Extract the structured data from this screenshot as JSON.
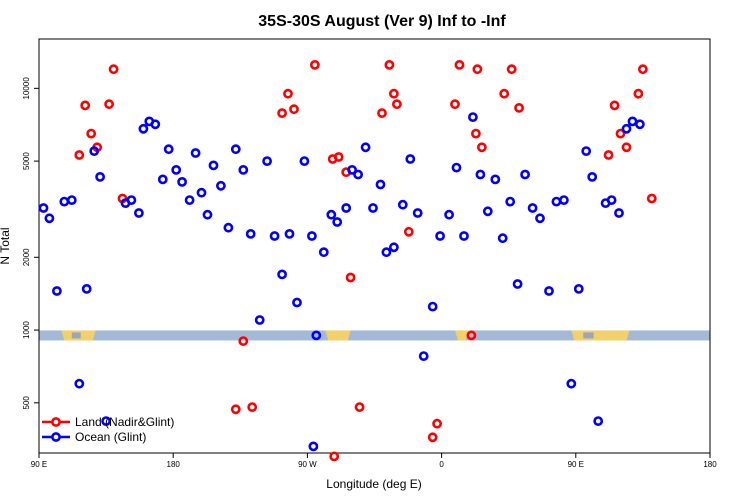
{
  "chart_data": {
    "type": "scatter",
    "title": "35S-30S August (Ver 9)   Inf to -Inf",
    "xlabel": "Longitude (deg E)",
    "ylabel": "N Total",
    "x_ticks": [
      {
        "value": 90,
        "label": "90 E"
      },
      {
        "value": 180,
        "label": "180"
      },
      {
        "value": 270,
        "label": "90 W"
      },
      {
        "value": 360,
        "label": "0"
      },
      {
        "value": 450,
        "label": "90 E"
      },
      {
        "value": 540,
        "label": "180"
      }
    ],
    "y_ticks": [
      {
        "value": 500,
        "label": "500"
      },
      {
        "value": 1000,
        "label": "1000"
      },
      {
        "value": 2000,
        "label": "2000"
      },
      {
        "value": 5000,
        "label": "5000"
      },
      {
        "value": 10000,
        "label": "10000"
      }
    ],
    "y_scale": "log",
    "xlim": [
      90,
      540
    ],
    "ylim": [
      310,
      16000
    ],
    "map_strip_value": 950,
    "legend": {
      "placement": "bottom-left",
      "entries": [
        {
          "label": "Land (Nadir&Glint)",
          "color": "#ff0000"
        },
        {
          "label": "Ocean (Glint)",
          "color": "#0000ff"
        }
      ]
    },
    "series": [
      {
        "name": "Land (Nadir&Glint)",
        "color": "#ff0000",
        "points": [
          [
            117,
            5300
          ],
          [
            121,
            8500
          ],
          [
            125,
            6500
          ],
          [
            129,
            5700
          ],
          [
            137,
            8600
          ],
          [
            140,
            12000
          ],
          [
            146,
            3500
          ],
          [
            287,
            5100
          ],
          [
            291,
            5200
          ],
          [
            296,
            4500
          ],
          [
            299,
            1650
          ],
          [
            305,
            480
          ],
          [
            320,
            7900
          ],
          [
            328,
            9500
          ],
          [
            338,
            2550
          ],
          [
            354,
            360
          ],
          [
            357,
            410
          ],
          [
            369,
            8600
          ],
          [
            372,
            12500
          ],
          [
            383,
            6500
          ],
          [
            387,
            5700
          ],
          [
            402,
            9500
          ],
          [
            407,
            12000
          ],
          [
            412,
            8300
          ],
          [
            222,
            470
          ],
          [
            227,
            900
          ],
          [
            233,
            480
          ],
          [
            253,
            7900
          ],
          [
            257,
            9500
          ],
          [
            261,
            8200
          ],
          [
            275,
            12500
          ],
          [
            288,
            300
          ],
          [
            472,
            5300
          ],
          [
            476,
            8500
          ],
          [
            480,
            6500
          ],
          [
            484,
            5700
          ],
          [
            492,
            9500
          ],
          [
            495,
            12000
          ],
          [
            501,
            3500
          ],
          [
            325,
            12500
          ],
          [
            330,
            8600
          ],
          [
            380,
            950
          ],
          [
            384,
            12000
          ]
        ]
      },
      {
        "name": "Ocean (Glint)",
        "color": "#0000ff",
        "points": [
          [
            93,
            3200
          ],
          [
            97,
            2900
          ],
          [
            102,
            1450
          ],
          [
            107,
            3400
          ],
          [
            112,
            3450
          ],
          [
            117,
            600
          ],
          [
            122,
            1480
          ],
          [
            127,
            5500
          ],
          [
            131,
            4300
          ],
          [
            135,
            420
          ],
          [
            148,
            3350
          ],
          [
            152,
            3450
          ],
          [
            157,
            3050
          ],
          [
            160,
            6800
          ],
          [
            164,
            7300
          ],
          [
            168,
            7100
          ],
          [
            173,
            4200
          ],
          [
            177,
            5600
          ],
          [
            182,
            4600
          ],
          [
            186,
            4100
          ],
          [
            191,
            3450
          ],
          [
            195,
            5400
          ],
          [
            199,
            3700
          ],
          [
            203,
            3000
          ],
          [
            207,
            4800
          ],
          [
            212,
            3950
          ],
          [
            217,
            2650
          ],
          [
            222,
            5600
          ],
          [
            227,
            4600
          ],
          [
            232,
            2500
          ],
          [
            238,
            1100
          ],
          [
            243,
            5000
          ],
          [
            248,
            2450
          ],
          [
            253,
            1700
          ],
          [
            258,
            2500
          ],
          [
            263,
            1300
          ],
          [
            268,
            5000
          ],
          [
            273,
            2450
          ],
          [
            276,
            950
          ],
          [
            281,
            2100
          ],
          [
            286,
            3000
          ],
          [
            290,
            2800
          ],
          [
            296,
            3200
          ],
          [
            300,
            4600
          ],
          [
            304,
            4400
          ],
          [
            309,
            5700
          ],
          [
            314,
            3200
          ],
          [
            319,
            4000
          ],
          [
            323,
            2100
          ],
          [
            328,
            2200
          ],
          [
            334,
            3300
          ],
          [
            339,
            5100
          ],
          [
            344,
            3050
          ],
          [
            348,
            780
          ],
          [
            354,
            1250
          ],
          [
            359,
            2450
          ],
          [
            365,
            3000
          ],
          [
            370,
            4700
          ],
          [
            375,
            2450
          ],
          [
            381,
            7600
          ],
          [
            386,
            4400
          ],
          [
            391,
            3100
          ],
          [
            396,
            4200
          ],
          [
            401,
            2400
          ],
          [
            406,
            3400
          ],
          [
            411,
            1550
          ],
          [
            416,
            4400
          ],
          [
            421,
            3200
          ],
          [
            426,
            2900
          ],
          [
            432,
            1450
          ],
          [
            437,
            3400
          ],
          [
            442,
            3450
          ],
          [
            447,
            600
          ],
          [
            452,
            1480
          ],
          [
            457,
            5500
          ],
          [
            461,
            4300
          ],
          [
            465,
            420
          ],
          [
            470,
            3350
          ],
          [
            474,
            3450
          ],
          [
            479,
            3050
          ],
          [
            484,
            6800
          ],
          [
            488,
            7300
          ],
          [
            493,
            7100
          ],
          [
            274,
            330
          ]
        ]
      }
    ]
  }
}
